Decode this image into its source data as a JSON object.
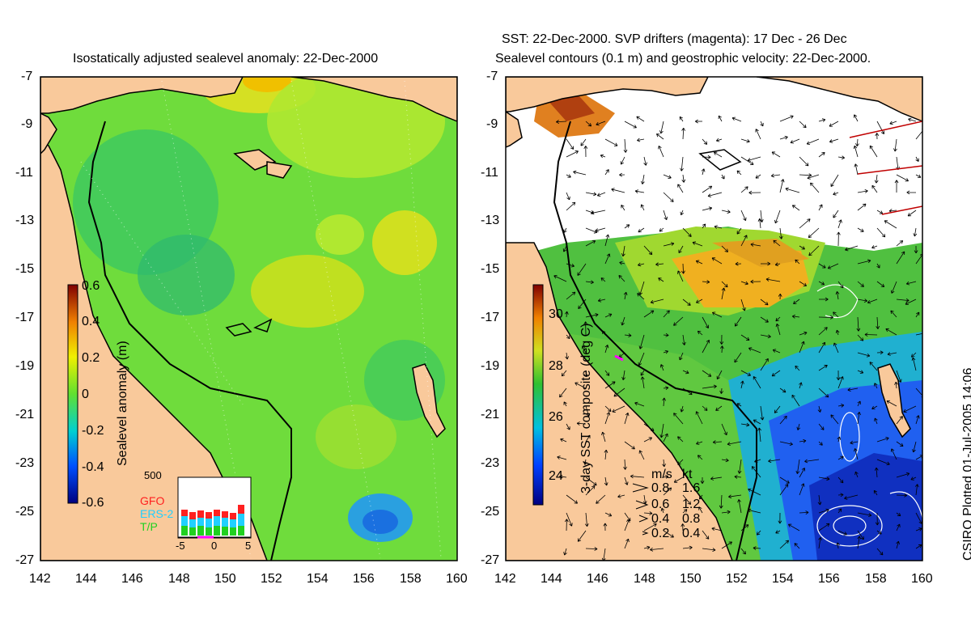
{
  "left_panel": {
    "title": "Isostatically adjusted sealevel anomaly: 22-Dec-2000",
    "colorbar_label": "Sealevel anomaly (m)",
    "colorbar_ticks": [
      "0.6",
      "0.4",
      "0.2",
      "0",
      "-0.2",
      "-0.4",
      "-0.6"
    ],
    "colorbar_range": [
      -0.6,
      0.6
    ],
    "inset": {
      "y_max_label": "500",
      "x_ticks": [
        "-5",
        "0",
        "5"
      ],
      "legend": [
        {
          "label": "GFO",
          "color": "#ff2020"
        },
        {
          "label": "ERS-2",
          "color": "#20d0ff"
        },
        {
          "label": "T/P",
          "color": "#20d020"
        }
      ]
    }
  },
  "right_panel": {
    "title_line1": "SST: 22-Dec-2000. SVP drifters (magenta): 17 Dec - 26 Dec",
    "title_line2": "Sealevel contours (0.1 m) and geostrophic velocity: 22-Dec-2000.",
    "colorbar_label": "3-day SST composite (deg C)",
    "colorbar_ticks": [
      "30",
      "28",
      "26",
      "24"
    ],
    "colorbar_range": [
      23,
      31.5
    ],
    "speed_key": {
      "header_ms": "m/s",
      "header_kt": "kt",
      "rows": [
        {
          "ms": "0.8",
          "kt": "1.6"
        },
        {
          "ms": "0.6",
          "kt": "1.2"
        },
        {
          "ms": "0.4",
          "kt": "0.8"
        },
        {
          "ms": "0.2",
          "kt": "0.4"
        }
      ]
    }
  },
  "axes": {
    "x_ticks": [
      "142",
      "144",
      "146",
      "148",
      "150",
      "152",
      "154",
      "156",
      "158",
      "160"
    ],
    "y_ticks": [
      "-7",
      "-9",
      "-11",
      "-13",
      "-15",
      "-17",
      "-19",
      "-21",
      "-23",
      "-25",
      "-27"
    ],
    "lon_range": [
      142,
      160
    ],
    "lat_range": [
      -27,
      -7
    ]
  },
  "colors": {
    "land": "#f9c99b",
    "coast": "#000000",
    "sea_level_base": "#6fdc3c",
    "sst_warm": "#f0a020"
  },
  "credit": "CSIRO Plotted 01-Jul-2005 14:06"
}
